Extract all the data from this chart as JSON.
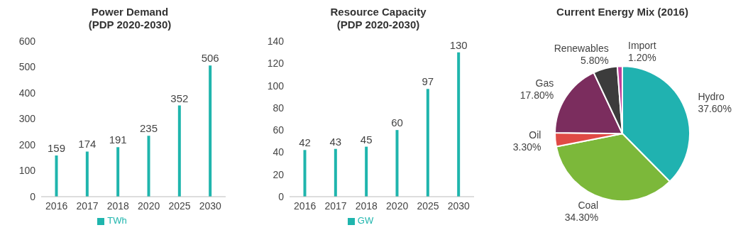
{
  "chart_data": [
    {
      "type": "bar",
      "title": "Power Demand\n(PDP 2020-2030)",
      "categories": [
        "2016",
        "2017",
        "2018",
        "2020",
        "2025",
        "2030"
      ],
      "series": [
        {
          "name": "TWh",
          "color": "#1fb5ad",
          "values": [
            159,
            174,
            191,
            235,
            352,
            506
          ]
        }
      ],
      "ylim": [
        0,
        600
      ],
      "yticks": [
        0,
        100,
        200,
        300,
        400,
        500,
        600
      ],
      "grid": false,
      "legend": "bottom",
      "data_labels": true
    },
    {
      "type": "bar",
      "title": "Resource Capacity\n(PDP 2020-2030)",
      "categories": [
        "2016",
        "2017",
        "2018",
        "2020",
        "2025",
        "2030"
      ],
      "series": [
        {
          "name": "GW",
          "color": "#1fb5ad",
          "values": [
            42,
            43,
            45,
            60,
            97,
            130
          ]
        }
      ],
      "ylim": [
        0,
        140
      ],
      "yticks": [
        0,
        20,
        40,
        60,
        80,
        100,
        120,
        140
      ],
      "grid": false,
      "legend": "bottom",
      "data_labels": true
    },
    {
      "type": "pie",
      "title": "Current Energy Mix (2016)",
      "categories": [
        "Hydro",
        "Coal",
        "Oil",
        "Gas",
        "Renewables",
        "Import"
      ],
      "values": [
        37.6,
        34.3,
        3.3,
        17.8,
        5.8,
        1.2
      ],
      "value_labels": [
        "37.60%",
        "34.30%",
        "3.30%",
        "17.80%",
        "5.80%",
        "1.20%"
      ],
      "colors": [
        "#20b2b0",
        "#7cb83a",
        "#e04a45",
        "#7b2d5e",
        "#3c3c3c",
        "#c03e9a"
      ],
      "legend": false
    }
  ]
}
